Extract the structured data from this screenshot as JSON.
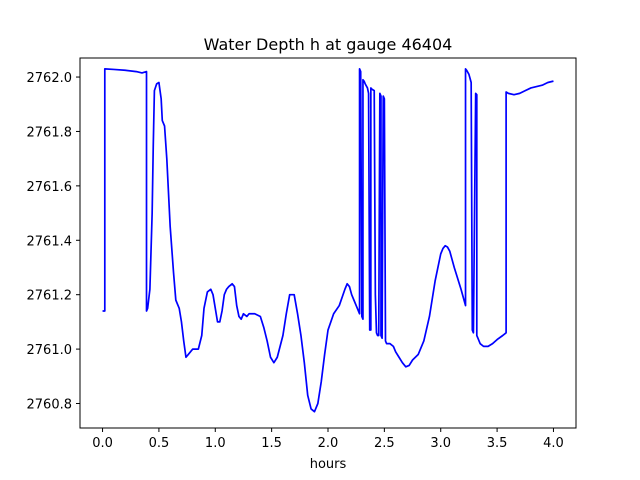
{
  "chart_data": {
    "type": "line",
    "title": "Water Depth h at gauge 46404",
    "xlabel": "hours",
    "ylabel": "",
    "xlim": [
      -0.2,
      4.2
    ],
    "ylim": [
      2760.71,
      2762.07
    ],
    "xticks": [
      0.0,
      0.5,
      1.0,
      1.5,
      2.0,
      2.5,
      3.0,
      3.5,
      4.0
    ],
    "xtick_labels": [
      "0.0",
      "0.5",
      "1.0",
      "1.5",
      "2.0",
      "2.5",
      "3.0",
      "3.5",
      "4.0"
    ],
    "yticks": [
      2760.8,
      2761.0,
      2761.2,
      2761.4,
      2761.6,
      2761.8,
      2762.0
    ],
    "ytick_labels": [
      "2760.8",
      "2761.0",
      "2761.2",
      "2761.4",
      "2761.6",
      "2761.8",
      "2762.0"
    ],
    "grid": false,
    "series": [
      {
        "color": "#0000ff",
        "x": [
          0.0,
          0.02,
          0.02,
          0.1,
          0.2,
          0.3,
          0.35,
          0.39,
          0.39,
          0.4,
          0.42,
          0.44,
          0.45,
          0.46,
          0.48,
          0.5,
          0.52,
          0.53,
          0.55,
          0.57,
          0.6,
          0.63,
          0.65,
          0.68,
          0.7,
          0.72,
          0.74,
          0.76,
          0.8,
          0.85,
          0.88,
          0.9,
          0.93,
          0.96,
          0.98,
          1.0,
          1.02,
          1.04,
          1.06,
          1.08,
          1.1,
          1.12,
          1.15,
          1.17,
          1.19,
          1.21,
          1.23,
          1.25,
          1.28,
          1.3,
          1.35,
          1.4,
          1.43,
          1.46,
          1.49,
          1.52,
          1.55,
          1.6,
          1.63,
          1.66,
          1.7,
          1.73,
          1.76,
          1.79,
          1.82,
          1.85,
          1.88,
          1.91,
          1.94,
          1.97,
          2.0,
          2.05,
          2.1,
          2.15,
          2.17,
          2.19,
          2.21,
          2.23,
          2.25,
          2.27,
          2.28,
          2.28,
          2.29,
          2.3,
          2.31,
          2.31,
          2.32,
          2.33,
          2.35,
          2.36,
          2.37,
          2.37,
          2.38,
          2.38,
          2.39,
          2.41,
          2.42,
          2.43,
          2.44,
          2.45,
          2.46,
          2.47,
          2.47,
          2.48,
          2.49,
          2.5,
          2.51,
          2.52,
          2.55,
          2.58,
          2.6,
          2.63,
          2.66,
          2.69,
          2.72,
          2.75,
          2.8,
          2.85,
          2.9,
          2.95,
          3.0,
          3.02,
          3.04,
          3.06,
          3.08,
          3.1,
          3.12,
          3.15,
          3.18,
          3.2,
          3.22,
          3.22,
          3.23,
          3.25,
          3.26,
          3.27,
          3.28,
          3.28,
          3.29,
          3.31,
          3.31,
          3.32,
          3.32,
          3.33,
          3.35,
          3.38,
          3.42,
          3.46,
          3.5,
          3.55,
          3.58,
          3.58,
          3.6,
          3.65,
          3.7,
          3.75,
          3.8,
          3.85,
          3.9,
          3.95,
          4.0
        ],
        "y": [
          2761.14,
          2761.14,
          2762.03,
          2762.028,
          2762.025,
          2762.02,
          2762.015,
          2762.02,
          2761.14,
          2761.15,
          2761.22,
          2761.5,
          2761.75,
          2761.95,
          2761.975,
          2761.98,
          2761.92,
          2761.84,
          2761.82,
          2761.7,
          2761.45,
          2761.28,
          2761.18,
          2761.15,
          2761.1,
          2761.03,
          2760.97,
          2760.98,
          2761.0,
          2761.0,
          2761.05,
          2761.15,
          2761.21,
          2761.22,
          2761.2,
          2761.15,
          2761.1,
          2761.1,
          2761.14,
          2761.2,
          2761.22,
          2761.23,
          2761.24,
          2761.23,
          2761.16,
          2761.12,
          2761.11,
          2761.13,
          2761.12,
          2761.13,
          2761.13,
          2761.12,
          2761.08,
          2761.03,
          2760.97,
          2760.95,
          2760.97,
          2761.05,
          2761.13,
          2761.2,
          2761.2,
          2761.13,
          2761.05,
          2760.95,
          2760.83,
          2760.78,
          2760.77,
          2760.8,
          2760.88,
          2760.98,
          2761.07,
          2761.13,
          2761.16,
          2761.22,
          2761.24,
          2761.23,
          2761.2,
          2761.18,
          2761.16,
          2761.14,
          2761.13,
          2762.03,
          2762.02,
          2761.12,
          2761.11,
          2761.99,
          2761.985,
          2761.975,
          2761.96,
          2761.94,
          2761.08,
          2761.07,
          2761.07,
          2761.96,
          2761.955,
          2761.95,
          2761.2,
          2761.06,
          2761.05,
          2761.05,
          2761.94,
          2761.93,
          2761.05,
          2761.04,
          2761.93,
          2761.92,
          2761.03,
          2761.02,
          2761.02,
          2761.01,
          2760.99,
          2760.97,
          2760.95,
          2760.935,
          2760.94,
          2760.96,
          2760.98,
          2761.03,
          2761.12,
          2761.25,
          2761.35,
          2761.37,
          2761.38,
          2761.375,
          2761.36,
          2761.33,
          2761.3,
          2761.26,
          2761.22,
          2761.19,
          2761.16,
          2762.03,
          2762.025,
          2762.01,
          2761.995,
          2761.98,
          2761.08,
          2761.07,
          2761.06,
          2761.94,
          2761.94,
          2761.935,
          2761.05,
          2761.04,
          2761.02,
          2761.01,
          2761.01,
          2761.02,
          2761.035,
          2761.05,
          2761.06,
          2761.945,
          2761.94,
          2761.935,
          2761.94,
          2761.95,
          2761.96,
          2761.965,
          2761.97,
          2761.98,
          2761.985
        ]
      }
    ]
  }
}
